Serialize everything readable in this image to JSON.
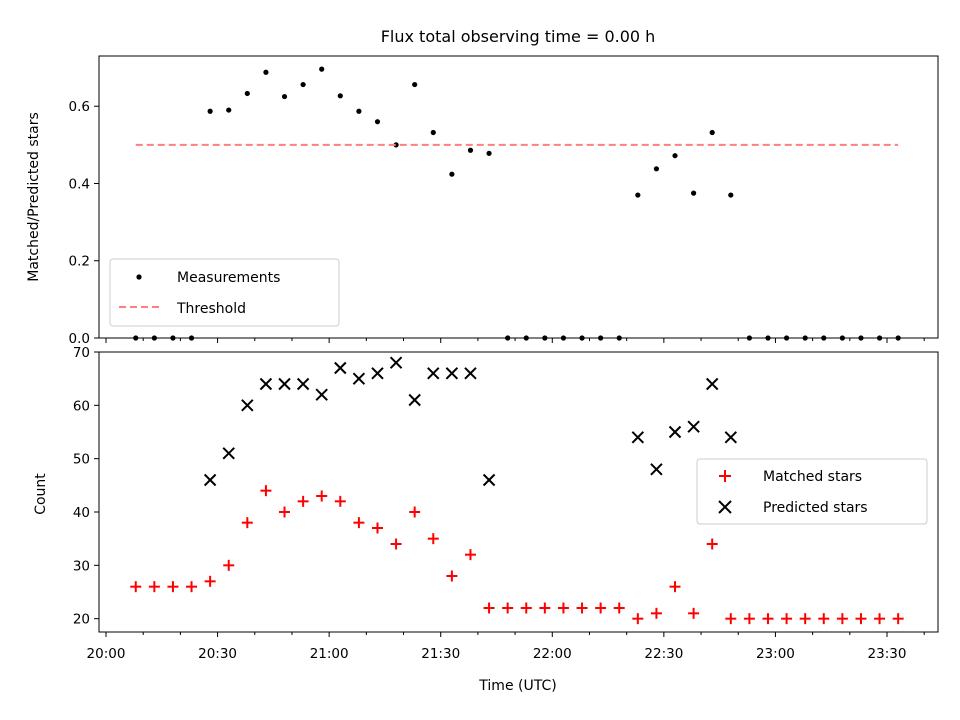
{
  "chart_data": [
    {
      "type": "scatter",
      "title": "Flux total observing time = 0.00 h",
      "xlabel": "",
      "ylabel": "Matched/Predicted stars",
      "xlim": [
        "20:00",
        "23:40"
      ],
      "ylim": [
        0,
        0.73
      ],
      "yticks": [
        "0.0",
        "0.2",
        "0.4",
        "0.6"
      ],
      "ytick_values": [
        0,
        0.2,
        0.4,
        0.6
      ],
      "legend_position": "lower-left",
      "series": [
        {
          "name": "Measurements",
          "marker": "dot",
          "color": "#000000",
          "x": [
            "20:08",
            "20:13",
            "20:18",
            "20:23",
            "20:28",
            "20:33",
            "20:38",
            "20:43",
            "20:48",
            "20:53",
            "20:58",
            "21:03",
            "21:08",
            "21:13",
            "21:18",
            "21:23",
            "21:28",
            "21:33",
            "21:38",
            "21:43",
            "21:48",
            "21:53",
            "21:58",
            "22:03",
            "22:08",
            "22:13",
            "22:18",
            "22:23",
            "22:28",
            "22:33",
            "22:38",
            "22:43",
            "22:48",
            "22:53",
            "22:58",
            "23:03",
            "23:08",
            "23:13",
            "23:18",
            "23:23",
            "23:28",
            "23:33"
          ],
          "y": [
            0,
            0,
            0,
            0,
            0.587,
            0.59,
            0.633,
            0.688,
            0.625,
            0.656,
            0.696,
            0.627,
            0.587,
            0.56,
            0.5,
            0.656,
            0.532,
            0.424,
            0.486,
            0.478,
            0,
            0,
            0,
            0,
            0,
            0,
            0,
            0.37,
            0.438,
            0.472,
            0.375,
            0.532,
            0.37,
            0,
            0,
            0,
            0,
            0,
            0,
            0,
            0,
            0
          ]
        },
        {
          "name": "Threshold",
          "line_style": "dashed",
          "color": "#ff7f7f",
          "x": [
            "20:08",
            "23:33"
          ],
          "y": [
            0.5,
            0.5
          ]
        }
      ]
    },
    {
      "type": "scatter",
      "title": "",
      "xlabel": "Time (UTC)",
      "ylabel": "Count",
      "xlim": [
        "20:00",
        "23:40"
      ],
      "ylim": [
        17.5,
        70
      ],
      "yticks": [
        "20",
        "30",
        "40",
        "50",
        "60",
        "70"
      ],
      "ytick_values": [
        20,
        30,
        40,
        50,
        60,
        70
      ],
      "xticks": [
        "20:00",
        "20:30",
        "21:00",
        "21:30",
        "22:00",
        "22:30",
        "23:00",
        "23:30"
      ],
      "legend_position": "center-right",
      "series": [
        {
          "name": "Matched stars",
          "marker": "plus",
          "color": "#ff0000",
          "x": [
            "20:08",
            "20:13",
            "20:18",
            "20:23",
            "20:28",
            "20:33",
            "20:38",
            "20:43",
            "20:48",
            "20:53",
            "20:58",
            "21:03",
            "21:08",
            "21:13",
            "21:18",
            "21:23",
            "21:28",
            "21:33",
            "21:38",
            "21:43",
            "21:48",
            "21:53",
            "21:58",
            "22:03",
            "22:08",
            "22:13",
            "22:18",
            "22:23",
            "22:28",
            "22:33",
            "22:38",
            "22:43",
            "22:48",
            "22:53",
            "22:58",
            "23:03",
            "23:08",
            "23:13",
            "23:18",
            "23:23",
            "23:28",
            "23:33"
          ],
          "y": [
            26,
            26,
            26,
            26,
            27,
            30,
            38,
            44,
            40,
            42,
            43,
            42,
            38,
            37,
            34,
            40,
            35,
            28,
            32,
            22,
            22,
            22,
            22,
            22,
            22,
            22,
            22,
            20,
            21,
            26,
            21,
            34,
            20,
            20,
            20,
            20,
            20,
            20,
            20,
            20,
            20,
            20
          ]
        },
        {
          "name": "Predicted stars",
          "marker": "x",
          "color": "#000000",
          "x": [
            "20:28",
            "20:33",
            "20:38",
            "20:43",
            "20:48",
            "20:53",
            "20:58",
            "21:03",
            "21:08",
            "21:13",
            "21:18",
            "21:23",
            "21:28",
            "21:33",
            "21:38",
            "21:43",
            "22:23",
            "22:28",
            "22:33",
            "22:38",
            "22:43",
            "22:48"
          ],
          "y": [
            46,
            51,
            60,
            64,
            64,
            64,
            62,
            67,
            65,
            66,
            68,
            61,
            66,
            66,
            66,
            46,
            54,
            48,
            55,
            56,
            64,
            54
          ]
        }
      ]
    }
  ]
}
